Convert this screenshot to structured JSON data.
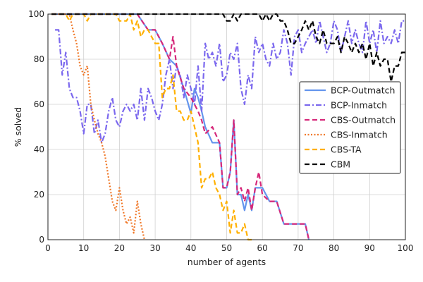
{
  "chart_data": {
    "type": "line",
    "xlabel": "number of agents",
    "ylabel": "% solved",
    "xlim": [
      0,
      100
    ],
    "ylim": [
      0,
      100
    ],
    "xticks": [
      0,
      10,
      20,
      30,
      40,
      50,
      60,
      70,
      80,
      90,
      100
    ],
    "yticks": [
      0,
      20,
      40,
      60,
      80,
      100
    ],
    "grid": true,
    "legend_position": "right",
    "series": [
      {
        "name": "BCP-Outmatch",
        "color": "#6495ED",
        "dash": "solid",
        "x": [
          1,
          5,
          10,
          15,
          20,
          25,
          28,
          30,
          32,
          34,
          36,
          38,
          40,
          41,
          42,
          43,
          44,
          46,
          48,
          49,
          50,
          51,
          52,
          53,
          54,
          55,
          56,
          57,
          58,
          60,
          62,
          64,
          66,
          68,
          70,
          72,
          73
        ],
        "y": [
          100,
          100,
          100,
          100,
          100,
          100,
          93,
          93,
          87,
          80,
          77,
          67,
          56,
          67,
          63,
          57,
          50,
          43,
          43,
          23,
          23,
          30,
          53,
          20,
          20,
          13,
          20,
          13,
          23,
          23,
          17,
          17,
          7,
          7,
          7,
          7,
          0
        ]
      },
      {
        "name": "BCP-Inmatch",
        "color": "#7B68EE",
        "dash": "dashdot",
        "x": [
          2,
          3,
          4,
          5,
          6,
          7,
          8,
          9,
          10,
          11,
          12,
          13,
          14,
          15,
          16,
          17,
          18,
          19,
          20,
          21,
          22,
          23,
          24,
          25,
          26,
          27,
          28,
          29,
          30,
          31,
          32,
          33,
          34,
          35,
          36,
          37,
          38,
          39,
          40,
          41,
          42,
          43,
          44,
          45,
          46,
          47,
          48,
          49,
          50,
          51,
          52,
          53,
          54,
          55,
          56,
          57,
          58,
          59,
          60,
          61,
          62,
          63,
          64,
          65,
          66,
          67,
          68,
          69,
          70,
          71,
          72,
          73,
          74,
          75,
          76,
          77,
          78,
          79,
          80,
          81,
          82,
          83,
          84,
          85,
          86,
          87,
          88,
          89,
          90,
          91,
          92,
          93,
          94,
          95,
          96,
          97,
          98,
          99,
          100
        ],
        "y": [
          93,
          93,
          73,
          83,
          67,
          63,
          63,
          57,
          47,
          60,
          60,
          47,
          53,
          43,
          47,
          57,
          63,
          53,
          50,
          57,
          60,
          57,
          60,
          53,
          67,
          53,
          67,
          63,
          57,
          53,
          60,
          73,
          80,
          67,
          77,
          73,
          63,
          73,
          67,
          60,
          77,
          57,
          87,
          80,
          83,
          77,
          87,
          70,
          73,
          83,
          80,
          87,
          67,
          60,
          73,
          67,
          90,
          83,
          87,
          80,
          77,
          87,
          80,
          83,
          93,
          87,
          73,
          90,
          93,
          83,
          87,
          90,
          93,
          87,
          97,
          90,
          83,
          87,
          97,
          93,
          83,
          90,
          97,
          87,
          93,
          87,
          83,
          97,
          87,
          93,
          83,
          97,
          87,
          90,
          87,
          93,
          87,
          97,
          97
        ]
      },
      {
        "name": "CBS-Outmatch",
        "color": "#D6287A",
        "dash": "dashed",
        "x": [
          1,
          5,
          10,
          15,
          20,
          25,
          28,
          30,
          32,
          34,
          35,
          36,
          38,
          40,
          42,
          43,
          44,
          46,
          48,
          49,
          50,
          51,
          52,
          53,
          54,
          55,
          56,
          57,
          58,
          59,
          60,
          62,
          64,
          66,
          68,
          70,
          72,
          73
        ],
        "y": [
          100,
          100,
          100,
          100,
          100,
          100,
          93,
          93,
          87,
          80,
          90,
          77,
          67,
          63,
          57,
          53,
          47,
          50,
          43,
          23,
          23,
          30,
          53,
          20,
          23,
          17,
          23,
          13,
          23,
          30,
          20,
          17,
          17,
          7,
          7,
          7,
          7,
          0
        ]
      },
      {
        "name": "CBS-Inmatch",
        "color": "#F07828",
        "dash": "dotted",
        "x": [
          1,
          5,
          6,
          7,
          8,
          9,
          10,
          11,
          12,
          13,
          14,
          15,
          16,
          17,
          18,
          19,
          20,
          21,
          22,
          23,
          24,
          25,
          26,
          27
        ],
        "y": [
          100,
          100,
          100,
          93,
          87,
          77,
          73,
          77,
          60,
          53,
          47,
          43,
          37,
          27,
          17,
          13,
          23,
          13,
          7,
          10,
          3,
          17,
          7,
          0
        ]
      },
      {
        "name": "CBS-TA",
        "color": "#FFB000",
        "dash": "dashed",
        "x": [
          1,
          5,
          6,
          7,
          8,
          9,
          10,
          11,
          12,
          13,
          14,
          15,
          16,
          17,
          18,
          19,
          20,
          21,
          22,
          23,
          24,
          25,
          26,
          27,
          28,
          29,
          30,
          31,
          32,
          33,
          34,
          35,
          36,
          37,
          38,
          39,
          40,
          41,
          42,
          43,
          44,
          45,
          46,
          47,
          48,
          49,
          50,
          51,
          52,
          53,
          54,
          55,
          56,
          57
        ],
        "y": [
          100,
          100,
          97,
          100,
          100,
          100,
          100,
          97,
          100,
          100,
          100,
          100,
          100,
          100,
          100,
          100,
          97,
          97,
          97,
          100,
          93,
          97,
          90,
          93,
          93,
          90,
          87,
          87,
          63,
          67,
          67,
          73,
          57,
          57,
          53,
          53,
          57,
          50,
          43,
          23,
          27,
          27,
          30,
          23,
          20,
          13,
          17,
          3,
          13,
          3,
          3,
          7,
          0,
          0
        ]
      },
      {
        "name": "CBM",
        "color": "#000000",
        "dash": "dashed",
        "x": [
          1,
          5,
          10,
          15,
          20,
          25,
          30,
          35,
          40,
          45,
          49,
          50,
          51,
          52,
          53,
          54,
          55,
          56,
          57,
          58,
          59,
          60,
          61,
          62,
          63,
          64,
          65,
          66,
          67,
          68,
          69,
          70,
          71,
          72,
          73,
          74,
          75,
          76,
          77,
          78,
          79,
          80,
          81,
          82,
          83,
          84,
          85,
          86,
          87,
          88,
          89,
          90,
          91,
          92,
          93,
          94,
          95,
          96,
          97,
          98,
          99,
          100
        ],
        "y": [
          100,
          100,
          100,
          100,
          100,
          100,
          100,
          100,
          100,
          100,
          100,
          97,
          97,
          100,
          97,
          100,
          100,
          100,
          100,
          100,
          100,
          97,
          100,
          97,
          100,
          100,
          97,
          97,
          93,
          87,
          87,
          90,
          93,
          97,
          93,
          97,
          90,
          87,
          93,
          87,
          87,
          87,
          90,
          83,
          90,
          87,
          83,
          87,
          83,
          87,
          80,
          87,
          77,
          83,
          77,
          80,
          80,
          70,
          77,
          77,
          83,
          83
        ]
      }
    ]
  }
}
